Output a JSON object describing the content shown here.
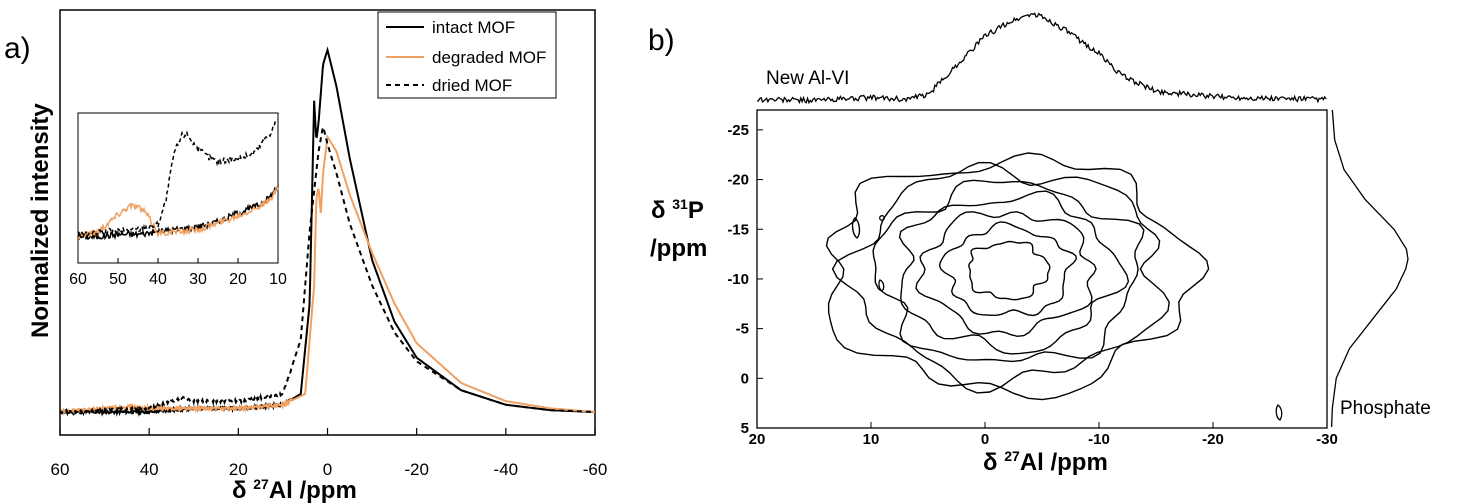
{
  "colors": {
    "intact": "#000000",
    "degraded": "#f0a060",
    "dried": "#000000"
  },
  "chart_data": [
    {
      "type": "line",
      "panel_label": "a)",
      "xlabel_prefix": "δ ",
      "xlabel_sup": "27",
      "xlabel_main": "Al /ppm",
      "ylabel": "Normalized intensity",
      "xlim": [
        60,
        -60
      ],
      "x_ticks": [
        60,
        40,
        20,
        0,
        -20,
        -40,
        -60
      ],
      "legend_position": "top-right",
      "series": [
        {
          "name": "intact MOF",
          "style": "solid",
          "color": "#000000",
          "x": [
            60,
            40,
            30,
            20,
            10,
            6,
            4,
            3,
            2.5,
            2,
            1,
            0,
            -2,
            -5,
            -10,
            -15,
            -20,
            -30,
            -40,
            -50,
            -60
          ],
          "y": [
            0.0,
            0.0,
            0.01,
            0.01,
            0.02,
            0.05,
            0.3,
            0.86,
            0.75,
            0.8,
            0.96,
            1.0,
            0.9,
            0.7,
            0.42,
            0.25,
            0.15,
            0.06,
            0.02,
            0.005,
            0.0
          ]
        },
        {
          "name": "degraded MOF",
          "style": "solid",
          "color": "#f0a060",
          "x": [
            60,
            50,
            45,
            40,
            30,
            20,
            10,
            5,
            3,
            2.5,
            2,
            1.5,
            1,
            0,
            -2,
            -5,
            -10,
            -15,
            -20,
            -30,
            -40,
            -50,
            -60
          ],
          "y": [
            0.0,
            0.01,
            0.015,
            0.01,
            0.01,
            0.01,
            0.02,
            0.05,
            0.35,
            0.59,
            0.62,
            0.55,
            0.66,
            0.76,
            0.72,
            0.6,
            0.44,
            0.3,
            0.19,
            0.08,
            0.03,
            0.01,
            0.0
          ]
        },
        {
          "name": "dried MOF",
          "style": "dashed",
          "color": "#000000",
          "x": [
            60,
            40,
            35,
            32,
            30,
            20,
            10,
            6,
            4,
            2,
            1,
            0,
            -2,
            -5,
            -10,
            -15,
            -20,
            -30,
            -40,
            -50,
            -60
          ],
          "y": [
            0.0,
            0.01,
            0.03,
            0.04,
            0.03,
            0.03,
            0.05,
            0.2,
            0.5,
            0.72,
            0.79,
            0.74,
            0.66,
            0.52,
            0.35,
            0.22,
            0.14,
            0.06,
            0.02,
            0.005,
            0.0
          ]
        }
      ],
      "inset": {
        "xlim": [
          60,
          10
        ],
        "x_ticks": [
          60,
          50,
          40,
          30,
          20,
          10
        ],
        "series": [
          {
            "name": "intact MOF",
            "x": [
              60,
              55,
              50,
              45,
              40,
              35,
              30,
              25,
              20,
              15,
              12,
              10
            ],
            "y": [
              0.05,
              0.05,
              0.07,
              0.07,
              0.09,
              0.11,
              0.13,
              0.17,
              0.24,
              0.3,
              0.37,
              0.46
            ]
          },
          {
            "name": "degraded MOF",
            "x": [
              60,
              55,
              50,
              47,
              45,
              43,
              40,
              35,
              30,
              25,
              20,
              15,
              12,
              10
            ],
            "y": [
              0.06,
              0.09,
              0.23,
              0.3,
              0.29,
              0.24,
              0.08,
              0.09,
              0.11,
              0.16,
              0.22,
              0.29,
              0.34,
              0.44
            ]
          },
          {
            "name": "dried MOF",
            "x": [
              60,
              55,
              50,
              45,
              40,
              38,
              36,
              34,
              33,
              32,
              30,
              27,
              25,
              22,
              20,
              17,
              15,
              12,
              10
            ],
            "y": [
              0.06,
              0.08,
              0.1,
              0.11,
              0.15,
              0.34,
              0.72,
              0.86,
              0.87,
              0.84,
              0.75,
              0.68,
              0.65,
              0.67,
              0.68,
              0.7,
              0.76,
              0.88,
              1.0
            ]
          }
        ]
      }
    },
    {
      "type": "contour",
      "panel_label": "b)",
      "xlabel_prefix": "δ ",
      "xlabel_sup": "27",
      "xlabel_main": "Al /ppm",
      "ylabel_prefix": "δ ",
      "ylabel_sup": "31",
      "ylabel_main": "P",
      "ylabel_unit": "/ppm",
      "xlim": [
        20,
        -30
      ],
      "ylim": [
        5,
        -27
      ],
      "x_ticks": [
        20,
        10,
        0,
        -10,
        -20,
        -30
      ],
      "y_ticks": [
        -25,
        -20,
        -15,
        -10,
        -5,
        0,
        5
      ],
      "top_projection_label": "New Al-VI",
      "right_projection_label": "Phosphate",
      "contour_center": {
        "x": -2,
        "y": -11
      },
      "contour_levels": [
        {
          "rx": 16,
          "ry": 11
        },
        {
          "rx": 13.5,
          "ry": 10
        },
        {
          "rx": 11.5,
          "ry": 8.5
        },
        {
          "rx": 9.5,
          "ry": 7.2
        },
        {
          "rx": 7.5,
          "ry": 5.7
        },
        {
          "rx": 5.5,
          "ry": 4.2
        },
        {
          "rx": 3.5,
          "ry": 2.7
        }
      ],
      "top_projection": {
        "x": [
          20,
          15,
          10,
          7,
          5,
          3,
          0,
          -2,
          -4,
          -5,
          -7,
          -10,
          -12,
          -15,
          -20,
          -25,
          -30
        ],
        "y": [
          0.03,
          0.02,
          0.05,
          0.03,
          0.08,
          0.35,
          0.75,
          0.9,
          1.0,
          0.97,
          0.82,
          0.55,
          0.3,
          0.12,
          0.06,
          0.04,
          0.03
        ]
      },
      "right_projection": {
        "y": [
          -27,
          -24,
          -21,
          -18,
          -15,
          -13,
          -12,
          -11,
          -9,
          -6,
          -3,
          0,
          3,
          5
        ],
        "value": [
          0.03,
          0.06,
          0.18,
          0.45,
          0.82,
          0.98,
          1.0,
          0.97,
          0.85,
          0.55,
          0.25,
          0.08,
          0.03,
          0.02
        ]
      }
    }
  ]
}
